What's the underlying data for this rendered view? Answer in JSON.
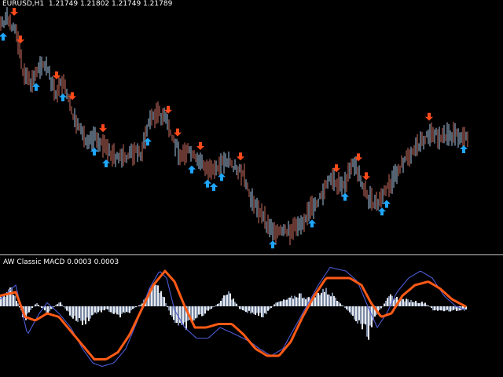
{
  "window": {
    "symbol_timeframe": "EURUSD,H1",
    "ohlc": "1.21749 1.21802 1.21749 1.21789"
  },
  "indicator": {
    "name": "AW Classic MACD",
    "value1": "0.0003",
    "value2": "0.0003"
  },
  "colors": {
    "background": "#000000",
    "bar_up": "#a9c6e4",
    "bar_down": "#cc6f62",
    "buy_arrow": "#1ea7ff",
    "sell_arrow": "#ff4a1a",
    "separator": "#c8c8c8",
    "hist_light": "#e6e9ef",
    "hist_dark": "#7c8ba3",
    "macd_line": "#4d5bd6",
    "signal_line": "#ff5a16"
  },
  "chart_data": {
    "type": "candlestick",
    "price_path": [
      [
        0,
        0.1
      ],
      [
        10,
        0.06
      ],
      [
        20,
        0.16
      ],
      [
        30,
        0.52
      ],
      [
        40,
        0.62
      ],
      [
        50,
        0.44
      ],
      [
        60,
        0.48
      ],
      [
        70,
        0.7
      ],
      [
        80,
        0.6
      ],
      [
        90,
        0.82
      ],
      [
        100,
        1.0
      ],
      [
        110,
        1.08
      ],
      [
        120,
        1.06
      ],
      [
        130,
        1.12
      ],
      [
        140,
        1.2
      ],
      [
        150,
        1.25
      ],
      [
        160,
        1.24
      ],
      [
        170,
        1.18
      ],
      [
        180,
        1.2
      ],
      [
        190,
        0.92
      ],
      [
        200,
        0.86
      ],
      [
        210,
        0.9
      ],
      [
        220,
        1.08
      ],
      [
        230,
        1.22
      ],
      [
        240,
        1.18
      ],
      [
        250,
        1.26
      ],
      [
        260,
        1.3
      ],
      [
        270,
        1.38
      ],
      [
        280,
        1.28
      ],
      [
        290,
        1.26
      ],
      [
        300,
        1.32
      ],
      [
        310,
        1.4
      ],
      [
        320,
        1.6
      ],
      [
        330,
        1.68
      ],
      [
        340,
        1.82
      ],
      [
        350,
        1.86
      ],
      [
        360,
        1.88
      ],
      [
        370,
        1.86
      ],
      [
        380,
        1.8
      ],
      [
        390,
        1.74
      ],
      [
        400,
        1.64
      ],
      [
        410,
        1.56
      ],
      [
        420,
        1.42
      ],
      [
        430,
        1.48
      ],
      [
        440,
        1.44
      ],
      [
        450,
        1.28
      ],
      [
        460,
        1.44
      ],
      [
        470,
        1.6
      ],
      [
        480,
        1.64
      ],
      [
        490,
        1.52
      ],
      [
        500,
        1.44
      ],
      [
        510,
        1.3
      ],
      [
        520,
        1.22
      ],
      [
        530,
        1.14
      ],
      [
        540,
        1.08
      ],
      [
        550,
        1.0
      ],
      [
        560,
        1.1
      ],
      [
        570,
        1.04
      ],
      [
        580,
        1.06
      ],
      [
        590,
        1.04
      ],
      [
        596,
        1.06
      ]
    ],
    "buy_signals_x": [
      4,
      46,
      80,
      120,
      135,
      188,
      244,
      264,
      272,
      282,
      347,
      397,
      439,
      486,
      492,
      590
    ],
    "sell_signals_x": [
      18,
      26,
      72,
      92,
      214,
      226,
      131,
      255,
      306,
      428,
      456,
      466,
      546
    ],
    "macd_histogram_path": [
      [
        0,
        0.3
      ],
      [
        15,
        0.5
      ],
      [
        30,
        -0.4
      ],
      [
        45,
        0.1
      ],
      [
        60,
        -0.2
      ],
      [
        75,
        0.15
      ],
      [
        90,
        -0.3
      ],
      [
        105,
        -0.5
      ],
      [
        120,
        -0.2
      ],
      [
        135,
        -0.1
      ],
      [
        150,
        -0.3
      ],
      [
        165,
        -0.15
      ],
      [
        180,
        0.1
      ],
      [
        195,
        0.6
      ],
      [
        205,
        0.4
      ],
      [
        215,
        -0.2
      ],
      [
        230,
        -0.7
      ],
      [
        245,
        -0.4
      ],
      [
        260,
        -0.2
      ],
      [
        275,
        0.05
      ],
      [
        290,
        0.4
      ],
      [
        305,
        -0.1
      ],
      [
        320,
        -0.2
      ],
      [
        335,
        -0.3
      ],
      [
        350,
        0.1
      ],
      [
        365,
        0.2
      ],
      [
        380,
        0.35
      ],
      [
        395,
        0.2
      ],
      [
        410,
        0.5
      ],
      [
        425,
        0.3
      ],
      [
        440,
        -0.1
      ],
      [
        455,
        -0.5
      ],
      [
        468,
        -0.8
      ],
      [
        480,
        -0.2
      ],
      [
        495,
        0.3
      ],
      [
        510,
        0.2
      ],
      [
        525,
        0.15
      ],
      [
        540,
        0.1
      ],
      [
        550,
        -0.1
      ],
      [
        565,
        -0.15
      ],
      [
        580,
        -0.12
      ],
      [
        592,
        -0.1
      ]
    ],
    "macd_line_path": [
      [
        0,
        0.2
      ],
      [
        20,
        0.6
      ],
      [
        35,
        -0.8
      ],
      [
        50,
        -0.2
      ],
      [
        60,
        0.1
      ],
      [
        75,
        -0.2
      ],
      [
        90,
        -0.6
      ],
      [
        105,
        -1.2
      ],
      [
        118,
        -1.6
      ],
      [
        130,
        -1.7
      ],
      [
        145,
        -1.6
      ],
      [
        160,
        -1.2
      ],
      [
        175,
        -0.4
      ],
      [
        190,
        0.5
      ],
      [
        203,
        1.0
      ],
      [
        212,
        0.8
      ],
      [
        222,
        -0.1
      ],
      [
        235,
        -0.6
      ],
      [
        250,
        -0.9
      ],
      [
        265,
        -0.9
      ],
      [
        280,
        -0.6
      ],
      [
        300,
        -0.8
      ],
      [
        318,
        -1.0
      ],
      [
        330,
        -1.2
      ],
      [
        345,
        -1.4
      ],
      [
        360,
        -1.2
      ],
      [
        375,
        -0.6
      ],
      [
        390,
        0.0
      ],
      [
        405,
        0.6
      ],
      [
        420,
        1.1
      ],
      [
        440,
        1.0
      ],
      [
        455,
        0.7
      ],
      [
        468,
        0.0
      ],
      [
        480,
        -0.6
      ],
      [
        492,
        -0.2
      ],
      [
        505,
        0.4
      ],
      [
        520,
        0.8
      ],
      [
        535,
        1.0
      ],
      [
        550,
        0.8
      ],
      [
        565,
        0.3
      ],
      [
        580,
        0.0
      ],
      [
        592,
        -0.1
      ]
    ],
    "signal_line_path": [
      [
        0,
        0.3
      ],
      [
        20,
        0.4
      ],
      [
        32,
        -0.3
      ],
      [
        45,
        -0.4
      ],
      [
        60,
        -0.2
      ],
      [
        75,
        -0.3
      ],
      [
        90,
        -0.7
      ],
      [
        105,
        -1.1
      ],
      [
        120,
        -1.5
      ],
      [
        135,
        -1.5
      ],
      [
        150,
        -1.3
      ],
      [
        165,
        -0.8
      ],
      [
        180,
        -0.1
      ],
      [
        195,
        0.6
      ],
      [
        210,
        1.0
      ],
      [
        222,
        0.7
      ],
      [
        235,
        0.0
      ],
      [
        248,
        -0.6
      ],
      [
        262,
        -0.6
      ],
      [
        278,
        -0.5
      ],
      [
        295,
        -0.5
      ],
      [
        310,
        -0.8
      ],
      [
        325,
        -1.2
      ],
      [
        340,
        -1.4
      ],
      [
        355,
        -1.4
      ],
      [
        370,
        -1.0
      ],
      [
        385,
        -0.3
      ],
      [
        400,
        0.3
      ],
      [
        415,
        0.8
      ],
      [
        430,
        0.8
      ],
      [
        445,
        0.8
      ],
      [
        460,
        0.6
      ],
      [
        472,
        0.1
      ],
      [
        485,
        -0.3
      ],
      [
        498,
        -0.2
      ],
      [
        512,
        0.3
      ],
      [
        528,
        0.6
      ],
      [
        545,
        0.7
      ],
      [
        560,
        0.5
      ],
      [
        575,
        0.2
      ],
      [
        592,
        0.0
      ]
    ]
  }
}
